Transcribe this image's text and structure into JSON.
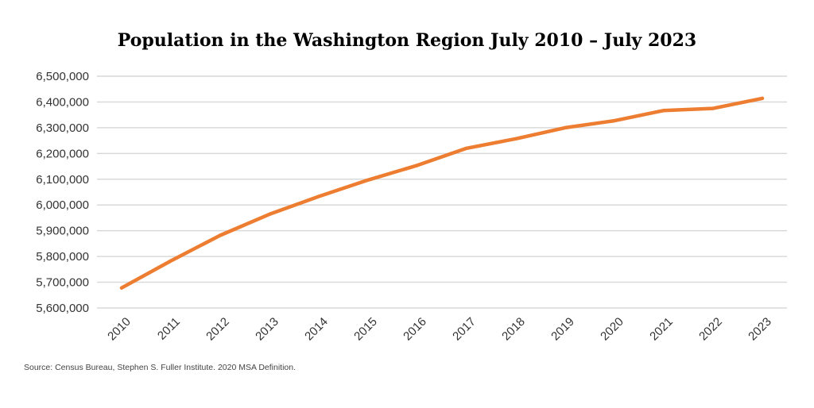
{
  "chart_data": {
    "type": "line",
    "title": "Population in the Washington Region July 2010 – July 2023",
    "xlabel": "",
    "ylabel": "",
    "categories": [
      "2010",
      "2011",
      "2012",
      "2013",
      "2014",
      "2015",
      "2016",
      "2017",
      "2018",
      "2019",
      "2020",
      "2021",
      "2022",
      "2023"
    ],
    "series": [
      {
        "values": [
          5678000,
          5783000,
          5882000,
          5964000,
          6033000,
          6097000,
          6154000,
          6220000,
          6257000,
          6300000,
          6327000,
          6367000,
          6375000,
          6414000
        ]
      }
    ],
    "ylim": [
      5600000,
      6500000
    ],
    "yticks": [
      "5,600,000",
      "5,700,000",
      "5,800,000",
      "5,900,000",
      "6,000,000",
      "6,100,000",
      "6,200,000",
      "6,300,000",
      "6,400,000",
      "6,500,000"
    ],
    "grid": "horizontal",
    "line_color": "#ED7D31",
    "grid_color": "#D9D9D9"
  },
  "source": "Source: Census Bureau, Stephen S. Fuller Institute. 2020 MSA Definition."
}
